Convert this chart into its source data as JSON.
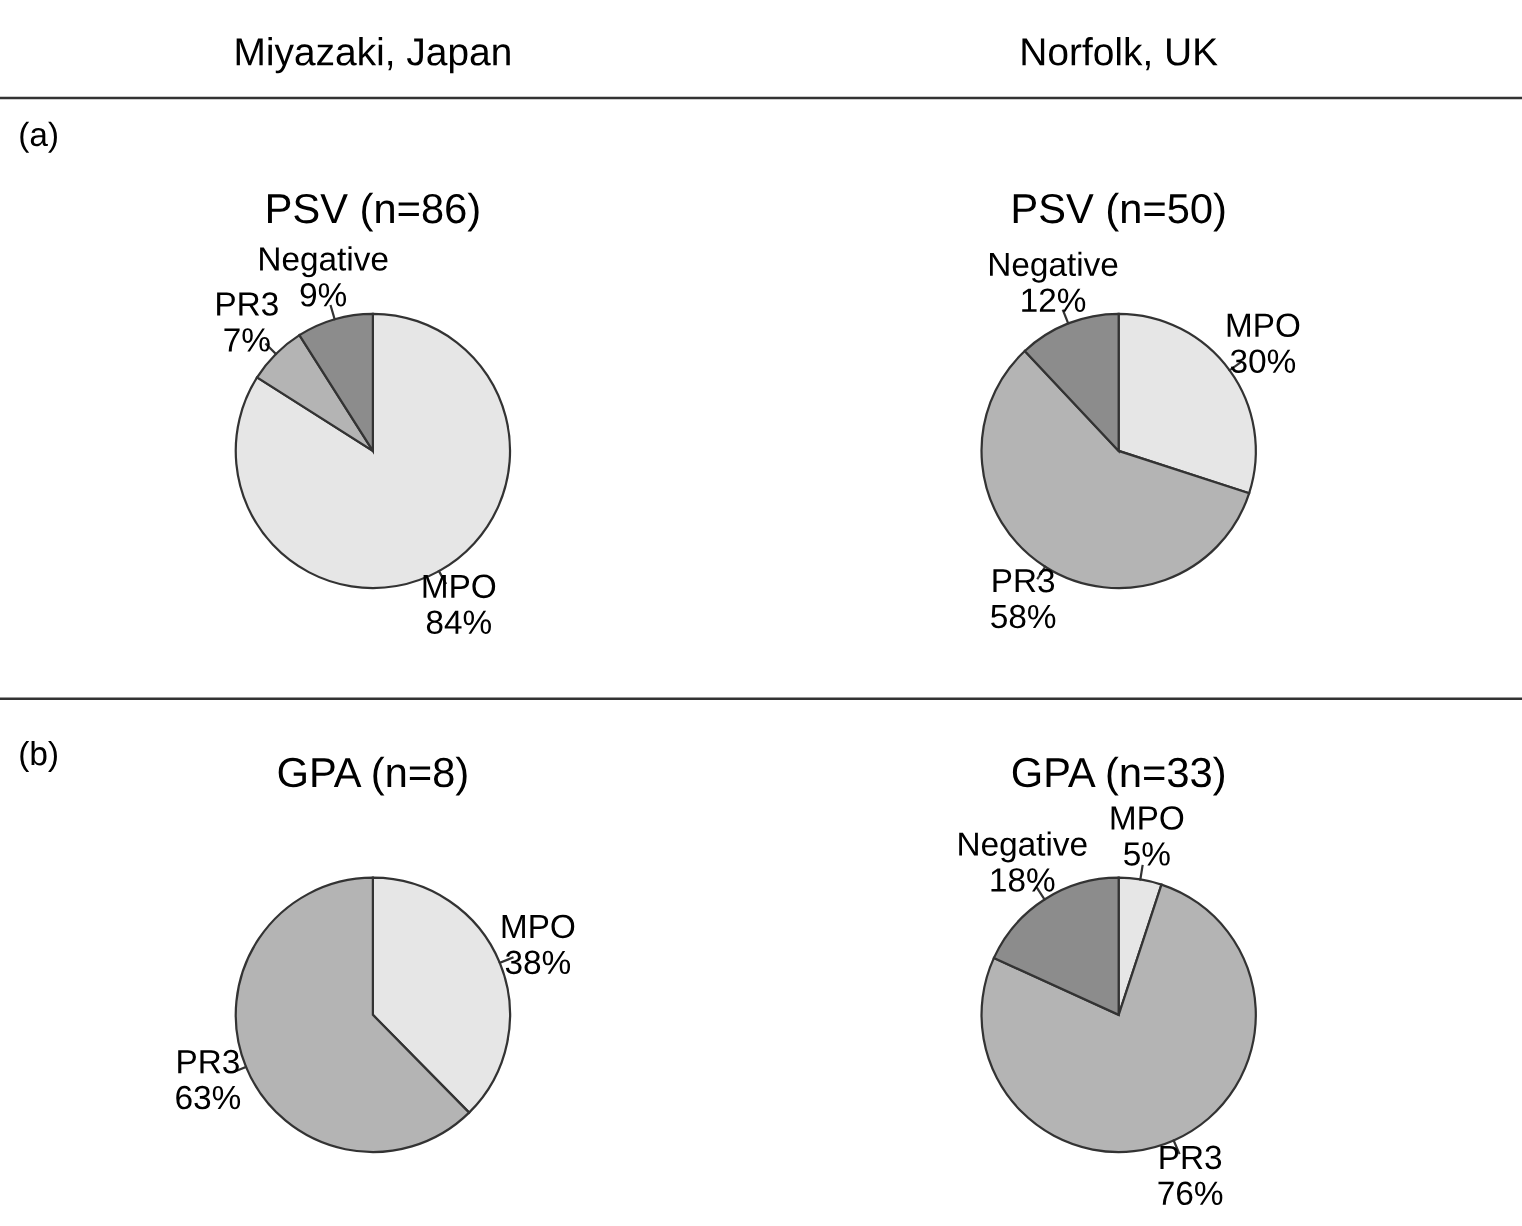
{
  "chart_data": [
    {
      "type": "pie",
      "title": "PSV (n=86)",
      "categories": [
        "MPO",
        "PR3",
        "Negative"
      ],
      "values": [
        84,
        7,
        9
      ],
      "value_labels": [
        "84%",
        "7%",
        "9%"
      ],
      "colors": [
        "#e6e6e6",
        "#b4b4b4",
        "#8c8c8c"
      ],
      "legend": false,
      "annotations": [
        "Miyazaki, Japan",
        "(a)"
      ]
    },
    {
      "type": "pie",
      "title": "PSV (n=50)",
      "categories": [
        "MPO",
        "PR3",
        "Negative"
      ],
      "values": [
        30,
        58,
        12
      ],
      "value_labels": [
        "30%",
        "58%",
        "12%"
      ],
      "colors": [
        "#e6e6e6",
        "#b4b4b4",
        "#8c8c8c"
      ],
      "legend": false,
      "annotations": [
        "Norfolk, UK"
      ]
    },
    {
      "type": "pie",
      "title": "GPA (n=8)",
      "categories": [
        "MPO",
        "PR3"
      ],
      "values": [
        38,
        63
      ],
      "value_labels": [
        "38%",
        "63%"
      ],
      "colors": [
        "#e6e6e6",
        "#b4b4b4"
      ],
      "legend": false,
      "annotations": [
        "(b)"
      ]
    },
    {
      "type": "pie",
      "title": "GPA (n=33)",
      "categories": [
        "MPO",
        "PR3",
        "Negative"
      ],
      "values": [
        5,
        76,
        18
      ],
      "value_labels": [
        "5%",
        "76%",
        "18%"
      ],
      "colors": [
        "#e6e6e6",
        "#b4b4b4",
        "#8c8c8c"
      ],
      "legend": false
    }
  ]
}
